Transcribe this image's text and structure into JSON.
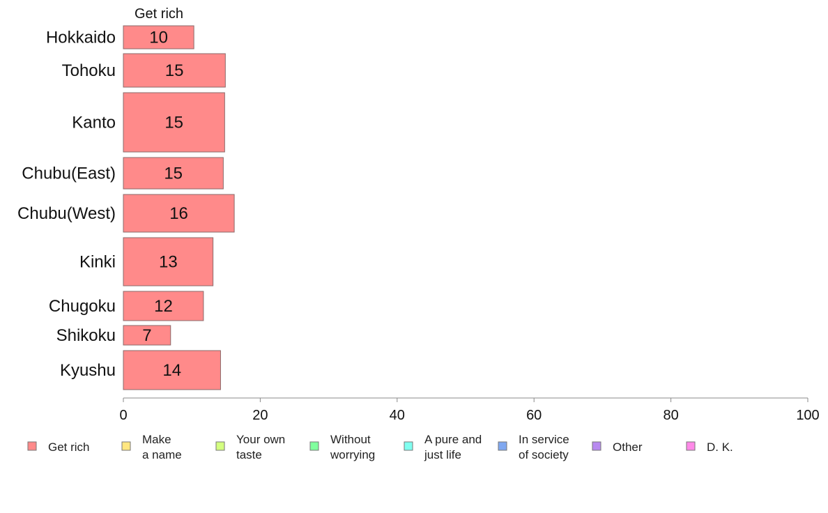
{
  "chart_data": {
    "type": "bar",
    "orientation": "horizontal",
    "stacked": true,
    "column_header": "Get rich",
    "categories": [
      "Hokkaido",
      "Tohoku",
      "Kanto",
      "Chubu(East)",
      "Chubu(West)",
      "Kinki",
      "Chugoku",
      "Shikoku",
      "Kyushu"
    ],
    "series": [
      {
        "name": "Get rich",
        "color": "#ff8a8a",
        "values": [
          10.3,
          14.9,
          14.8,
          14.6,
          16.2,
          13.1,
          11.7,
          6.9,
          14.2
        ],
        "labels": [
          "10",
          "15",
          "15",
          "15",
          "16",
          "13",
          "12",
          "7",
          "14"
        ]
      }
    ],
    "xlim": [
      0,
      100
    ],
    "xticks": [
      "0",
      "20",
      "40",
      "60",
      "80",
      "100"
    ],
    "legend": {
      "placement": "bottom",
      "items": [
        {
          "lines": [
            "Get rich"
          ],
          "color": "#ff8a8a"
        },
        {
          "lines": [
            "Make",
            "a name"
          ],
          "color": "#ffe680"
        },
        {
          "lines": [
            "Your own",
            "taste"
          ],
          "color": "#d4ff80"
        },
        {
          "lines": [
            "Without",
            "worrying"
          ],
          "color": "#80ff9e"
        },
        {
          "lines": [
            "A pure and",
            "just life"
          ],
          "color": "#80fff0"
        },
        {
          "lines": [
            "In service",
            "of society"
          ],
          "color": "#80a8f0"
        },
        {
          "lines": [
            "Other"
          ],
          "color": "#b88af0"
        },
        {
          "lines": [
            "D. K."
          ],
          "color": "#ff8ae8"
        }
      ]
    }
  }
}
